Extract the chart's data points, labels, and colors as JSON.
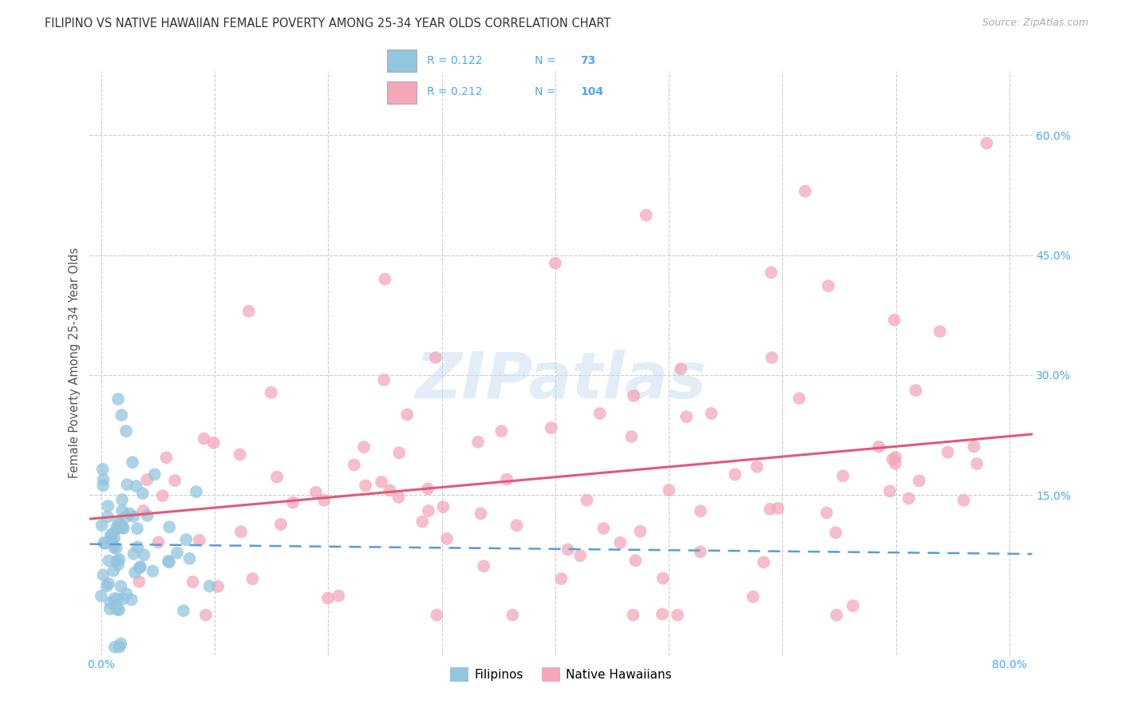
{
  "title": "FILIPINO VS NATIVE HAWAIIAN FEMALE POVERTY AMONG 25-34 YEAR OLDS CORRELATION CHART",
  "source": "Source: ZipAtlas.com",
  "ylabel": "Female Poverty Among 25-34 Year Olds",
  "xlim": [
    -0.01,
    0.82
  ],
  "ylim": [
    -0.05,
    0.68
  ],
  "filipino_R": 0.122,
  "filipino_N": 73,
  "hawaiian_R": 0.212,
  "hawaiian_N": 104,
  "filipino_color": "#92c5de",
  "filipino_edge_color": "#4393c3",
  "hawaiian_color": "#f4a7b9",
  "hawaiian_edge_color": "#d6604d",
  "filipino_line_color": "#5b9bd5",
  "hawaiian_line_color": "#e05a7a",
  "legend_label_1": "Filipinos",
  "legend_label_2": "Native Hawaiians",
  "watermark_text": "ZIPatlas",
  "background_color": "#ffffff",
  "grid_color": "#cccccc",
  "tick_color": "#4da6ff",
  "legend_text_color": "#4da6ff",
  "title_color": "#333333",
  "source_color": "#aaaaaa",
  "seed": 7
}
